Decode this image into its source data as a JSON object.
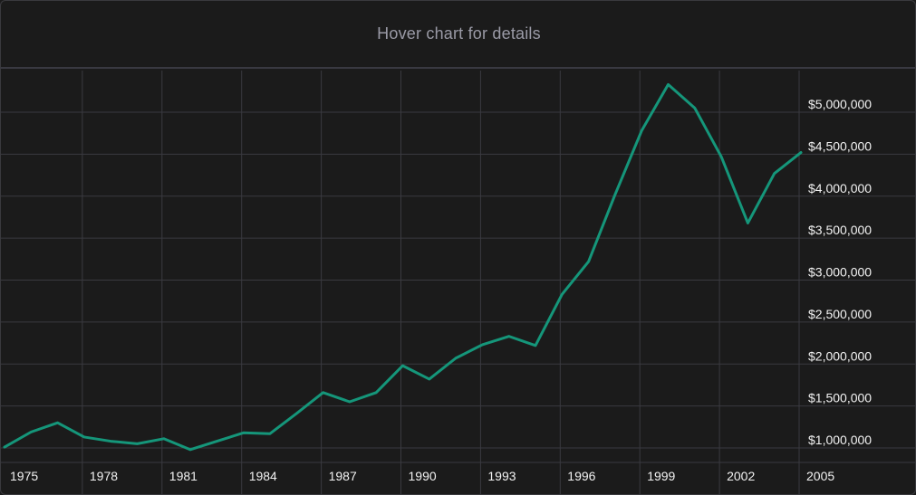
{
  "header": {
    "hint": "Hover chart for details"
  },
  "colors": {
    "background": "#1b1b1b",
    "grid": "#3a3a40",
    "line": "#15967a",
    "text": "#f2f2f2",
    "hint": "#9a9aa6"
  },
  "chart_data": {
    "type": "line",
    "title": "",
    "xlabel": "",
    "ylabel": "",
    "xlim": [
      1974.5,
      2008.6
    ],
    "ylim": [
      900000,
      5450000
    ],
    "grid": true,
    "y_axis_position": "right",
    "x_ticks": [
      "1975",
      "1978",
      "1981",
      "1984",
      "1987",
      "1990",
      "1993",
      "1996",
      "1999",
      "2002",
      "2005"
    ],
    "x_tick_values": [
      1975,
      1978,
      1981,
      1984,
      1987,
      1990,
      1993,
      1996,
      1999,
      2002,
      2005
    ],
    "y_ticks": [
      "$1,000,000",
      "$1,500,000",
      "$2,000,000",
      "$2,500,000",
      "$3,000,000",
      "$3,500,000",
      "$4,000,000",
      "$4,500,000",
      "$5,000,000"
    ],
    "y_tick_values": [
      1000000,
      1500000,
      2000000,
      2500000,
      3000000,
      3500000,
      4000000,
      4500000,
      5000000
    ],
    "x": [
      1974.5,
      1975.5,
      1976.5,
      1977.5,
      1978.5,
      1979.5,
      1980.5,
      1981.5,
      1982.5,
      1983.5,
      1984.5,
      1985.5,
      1986.5,
      1987.5,
      1988.5,
      1989.5,
      1990.5,
      1991.5,
      1992.5,
      1993.5,
      1994.5,
      1995.5,
      1996.5,
      1997.5,
      1998.5,
      1999.5,
      2000.5,
      2001.5,
      2002.5,
      2003.5,
      2004.5
    ],
    "series": [
      {
        "values": [
          1010000,
          1190000,
          1300000,
          1130000,
          1080000,
          1050000,
          1110000,
          980000,
          1080000,
          1180000,
          1170000,
          1410000,
          1660000,
          1550000,
          1660000,
          1980000,
          1820000,
          2070000,
          2230000,
          2330000,
          2220000,
          2830000,
          3220000,
          4020000,
          4780000,
          5330000,
          5050000,
          4470000,
          3680000,
          4270000,
          4520000
        ]
      }
    ]
  }
}
